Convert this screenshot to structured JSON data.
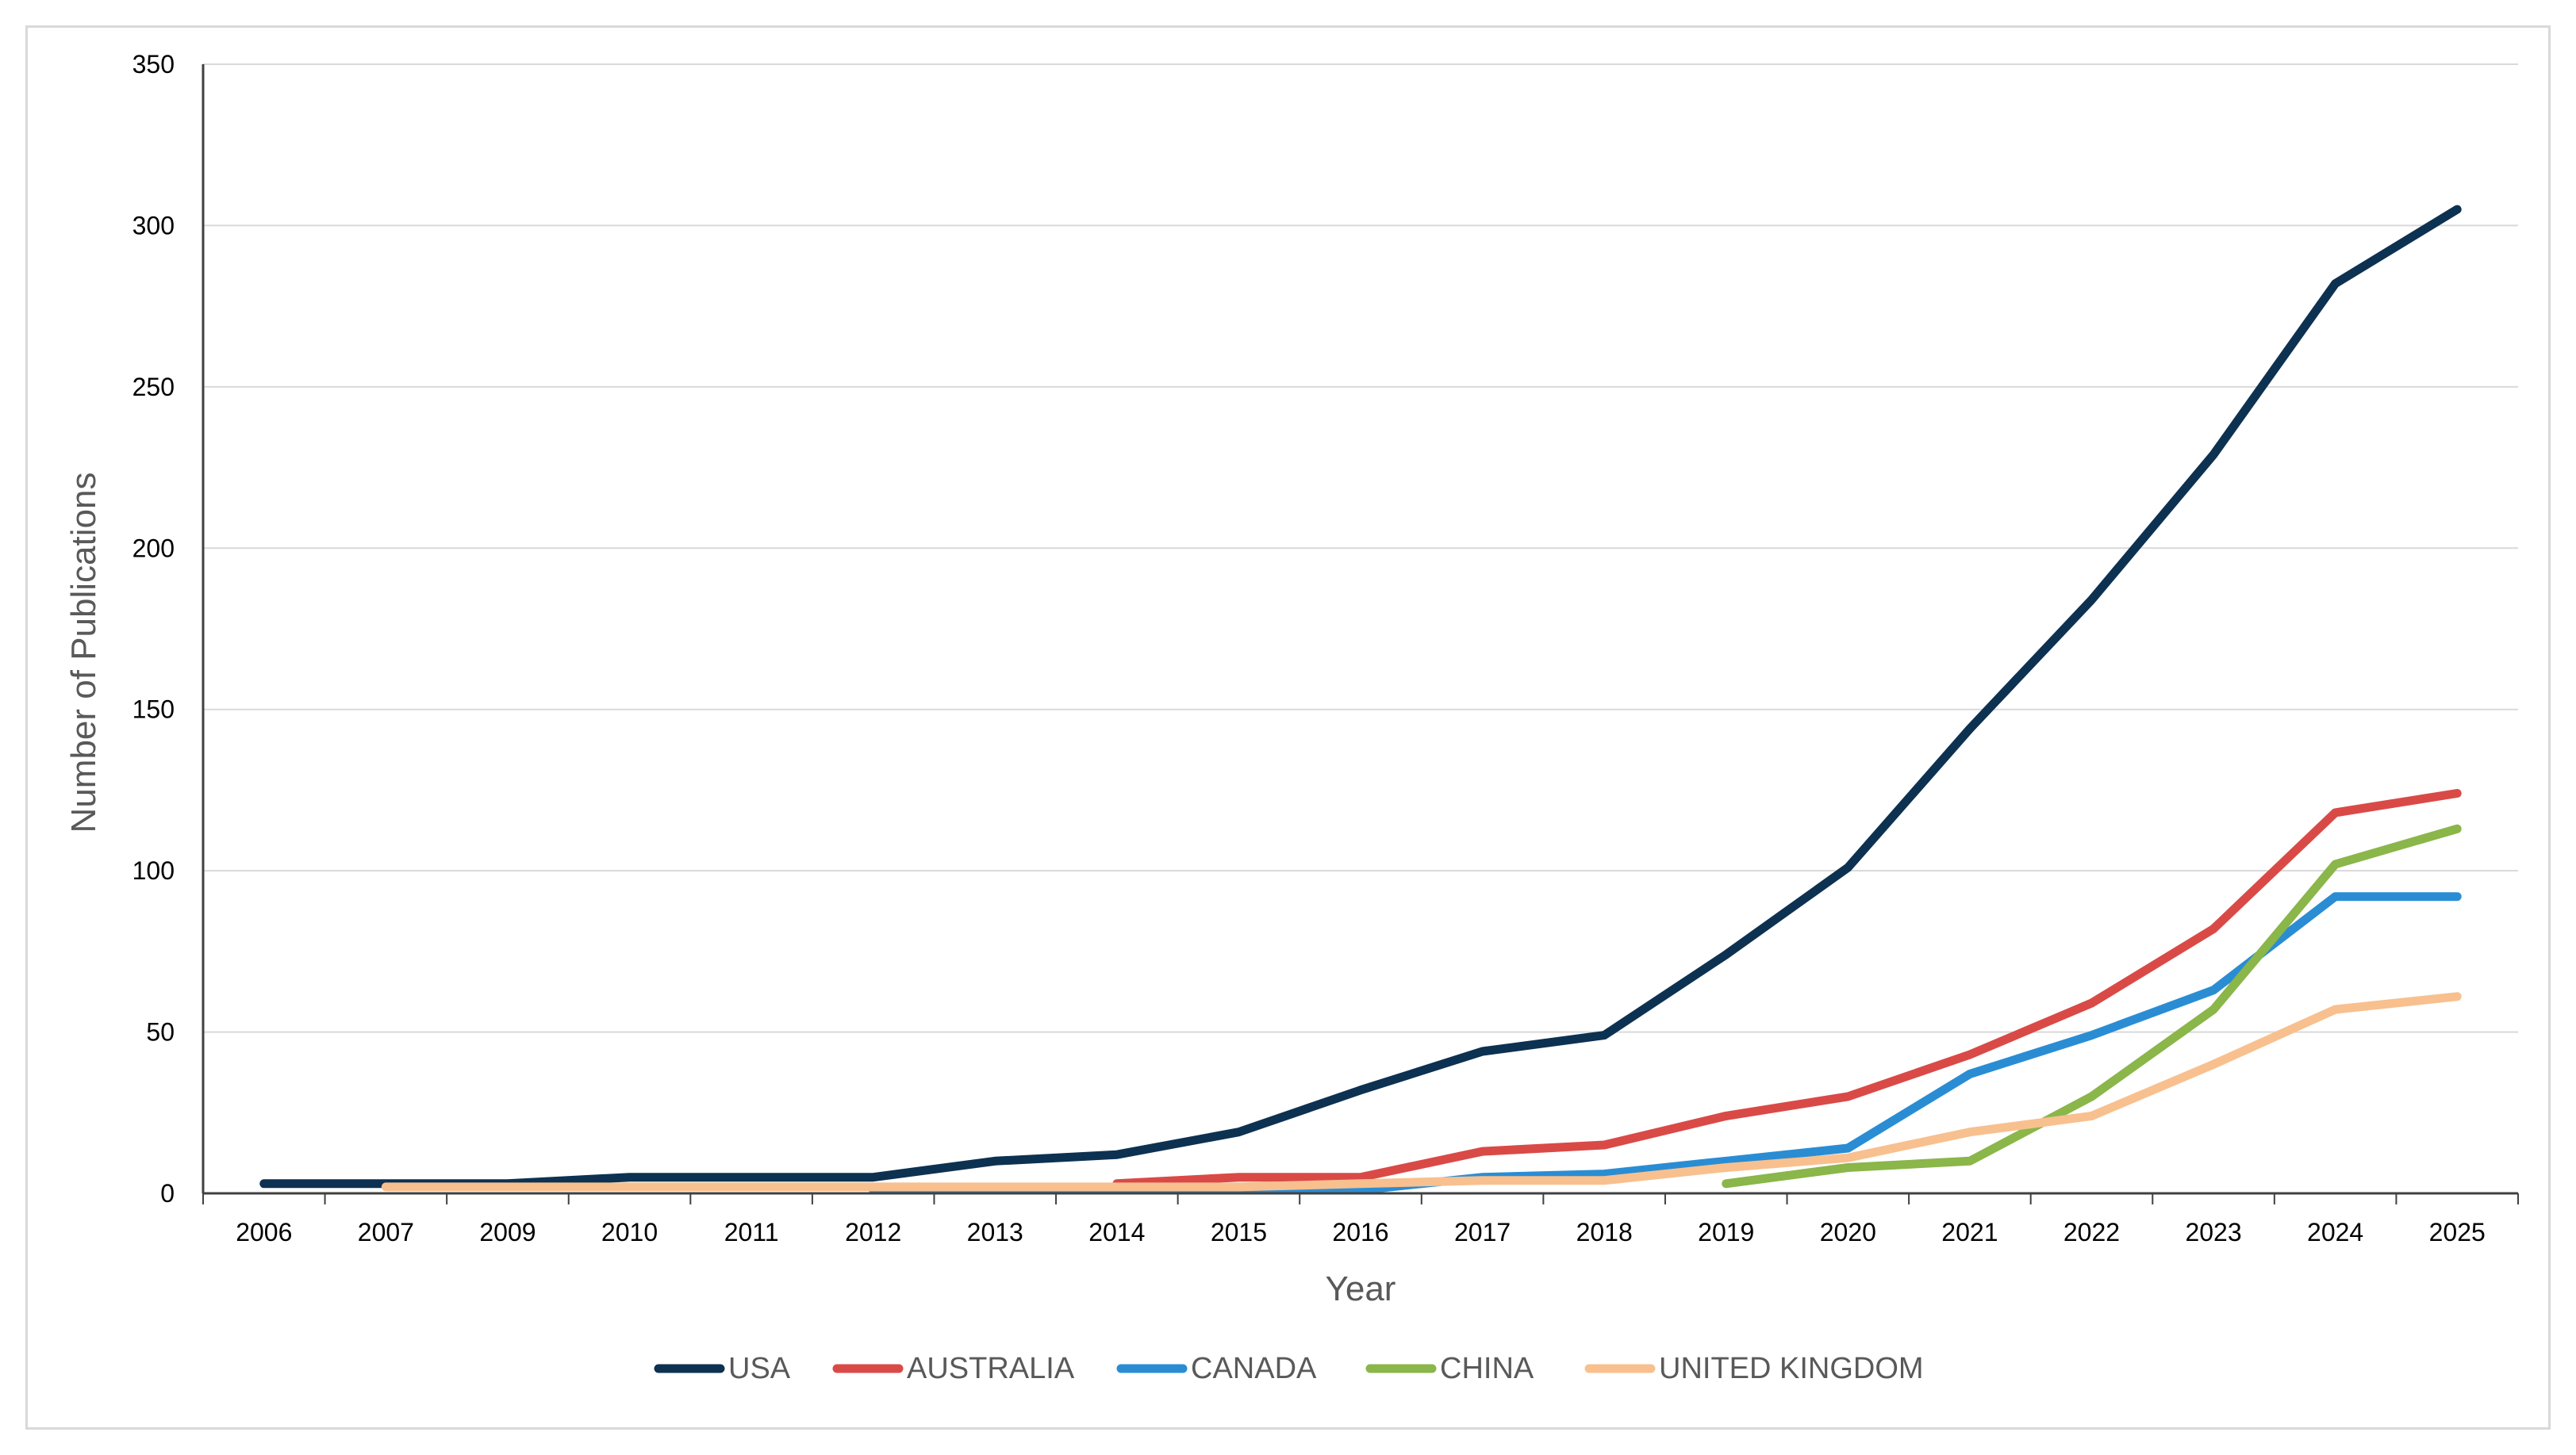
{
  "chart_data": {
    "type": "line",
    "title": "",
    "xlabel": "Year",
    "ylabel": "Number of Publications",
    "ylim": [
      0,
      350
    ],
    "yticks": [
      0,
      50,
      100,
      150,
      200,
      250,
      300,
      350
    ],
    "grid": "horizontal",
    "legend_position": "bottom",
    "categories": [
      "2006",
      "2007",
      "2009",
      "2010",
      "2011",
      "2012",
      "2013",
      "2014",
      "2015",
      "2016",
      "2017",
      "2018",
      "2019",
      "2020",
      "2021",
      "2022",
      "2023",
      "2024",
      "2025"
    ],
    "series": [
      {
        "name": "USA",
        "color": "#0d3151",
        "values": [
          3,
          3,
          3,
          5,
          5,
          5,
          10,
          12,
          19,
          32,
          44,
          49,
          74,
          101,
          144,
          184,
          229,
          282,
          305
        ]
      },
      {
        "name": "AUSTRALIA",
        "color": "#d94a47",
        "values": [
          null,
          null,
          null,
          null,
          null,
          null,
          null,
          3,
          5,
          5,
          13,
          15,
          24,
          30,
          43,
          59,
          82,
          118,
          124
        ]
      },
      {
        "name": "CANADA",
        "color": "#2a8dd4",
        "values": [
          null,
          null,
          null,
          null,
          null,
          1,
          1,
          1,
          1,
          1,
          5,
          6,
          10,
          14,
          37,
          49,
          63,
          92,
          92
        ]
      },
      {
        "name": "CHINA",
        "color": "#8ab64a",
        "values": [
          null,
          null,
          null,
          null,
          null,
          null,
          null,
          null,
          null,
          null,
          null,
          null,
          3,
          8,
          10,
          30,
          57,
          102,
          113
        ]
      },
      {
        "name": "UNITED KINGDOM",
        "color": "#f8c08e",
        "values": [
          null,
          2,
          2,
          2,
          2,
          2,
          2,
          2,
          2,
          3,
          4,
          4,
          8,
          11,
          19,
          24,
          40,
          57,
          61
        ]
      }
    ]
  }
}
